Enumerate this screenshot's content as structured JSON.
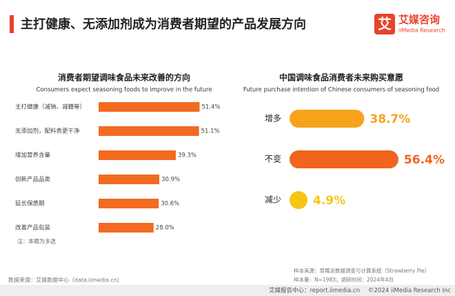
{
  "header": {
    "title": "主打健康、无添加剂成为消费者期望的产品发展方向",
    "logo_cn": "艾媒咨询",
    "logo_en": "iiMedia Research",
    "logo_mark": "艾"
  },
  "chart_data": [
    {
      "type": "bar",
      "orientation": "horizontal",
      "title": "消费者期望调味食品未来改善的方向",
      "subtitle": "Consumers expect seasoning foods to improve in the future",
      "categories": [
        "主打健康（减钠、减糖等）",
        "无添加剂，配料表更干净",
        "增加营养含量",
        "创新产品品类",
        "延长保质期",
        "改善产品包装"
      ],
      "values": [
        51.4,
        51.1,
        39.3,
        30.9,
        30.6,
        28.0
      ],
      "value_labels": [
        "51.4%",
        "51.1%",
        "39.3%",
        "30.9%",
        "30.6%",
        "28.0%"
      ],
      "color": "#f26b21",
      "note": "注：本题为多选"
    },
    {
      "type": "pill-bar",
      "title": "中国调味食品消费者未来购买意愿",
      "subtitle": "Future purchase intention of Chinese consumers of seasoning food",
      "categories": [
        "增多",
        "不变",
        "减少"
      ],
      "values": [
        38.7,
        56.4,
        4.9
      ],
      "value_labels": [
        "38.7%",
        "56.4%",
        "4.9%"
      ],
      "colors": [
        "#f7a21b",
        "#f0641e",
        "#f7c514"
      ]
    }
  ],
  "footer": {
    "source": "数据来源：艾媒数据中心（data.iimedia.cn）",
    "sample_source": "样本来源：草莓派数据调查与计算系统（Strawberry Pie）",
    "sample_size": "样本量：N=1983；调研时间：2024年4月",
    "report_center": "艾媒报告中心：report.iimedia.cn",
    "copyright": "©2024 iiMedia Research Inc"
  }
}
